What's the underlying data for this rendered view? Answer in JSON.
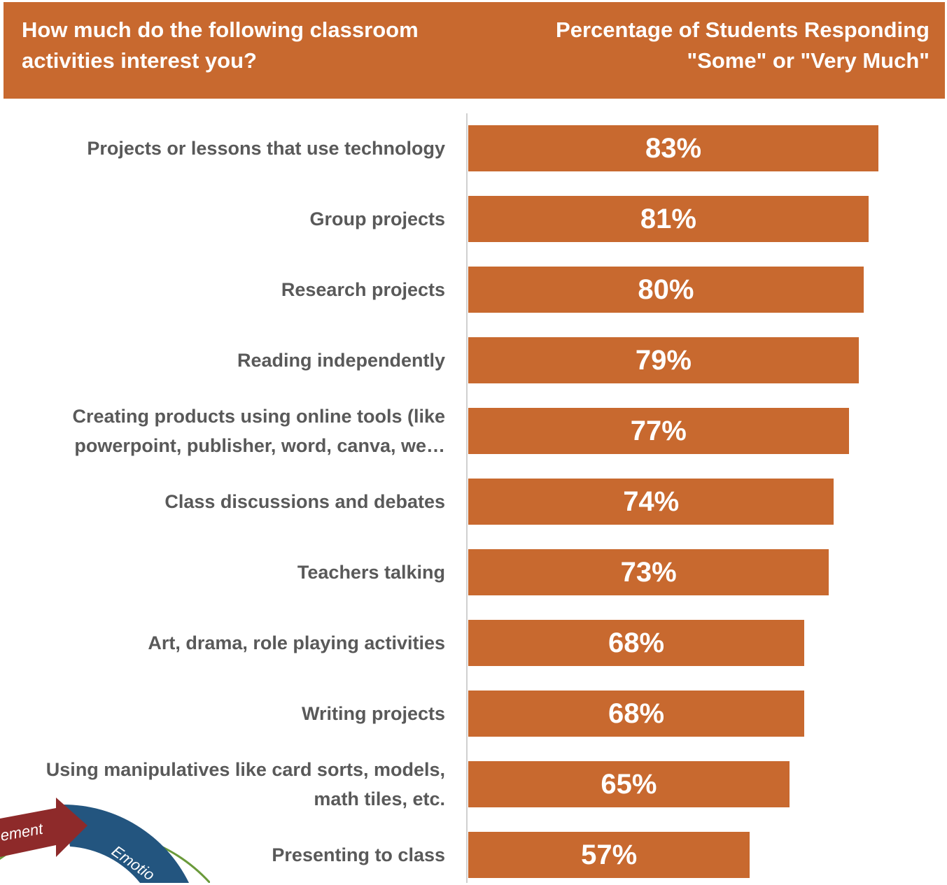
{
  "chart_data": {
    "type": "bar",
    "orientation": "horizontal",
    "title": "How much do the following classroom activities interest you?",
    "subtitle": "Percentage of Students Responding \"Some\" or \"Very Much\"",
    "categories": [
      "Projects or lessons that use technology",
      "Group projects",
      "Research projects",
      "Reading independently",
      "Creating products using online tools (like powerpoint, publisher, word, canva, we…",
      "Class discussions and debates",
      "Teachers talking",
      "Art, drama, role playing activities",
      "Writing projects",
      "Using manipulatives like card sorts, models, math tiles, etc.",
      "Presenting to class"
    ],
    "values": [
      83,
      81,
      80,
      79,
      77,
      74,
      73,
      68,
      68,
      65,
      57
    ],
    "value_labels": [
      "83%",
      "81%",
      "80%",
      "79%",
      "77%",
      "74%",
      "73%",
      "68%",
      "68%",
      "65%",
      "57%"
    ],
    "color": "#c8692f"
  },
  "decoration": {
    "labels": [
      "ement",
      "Emotio"
    ]
  }
}
